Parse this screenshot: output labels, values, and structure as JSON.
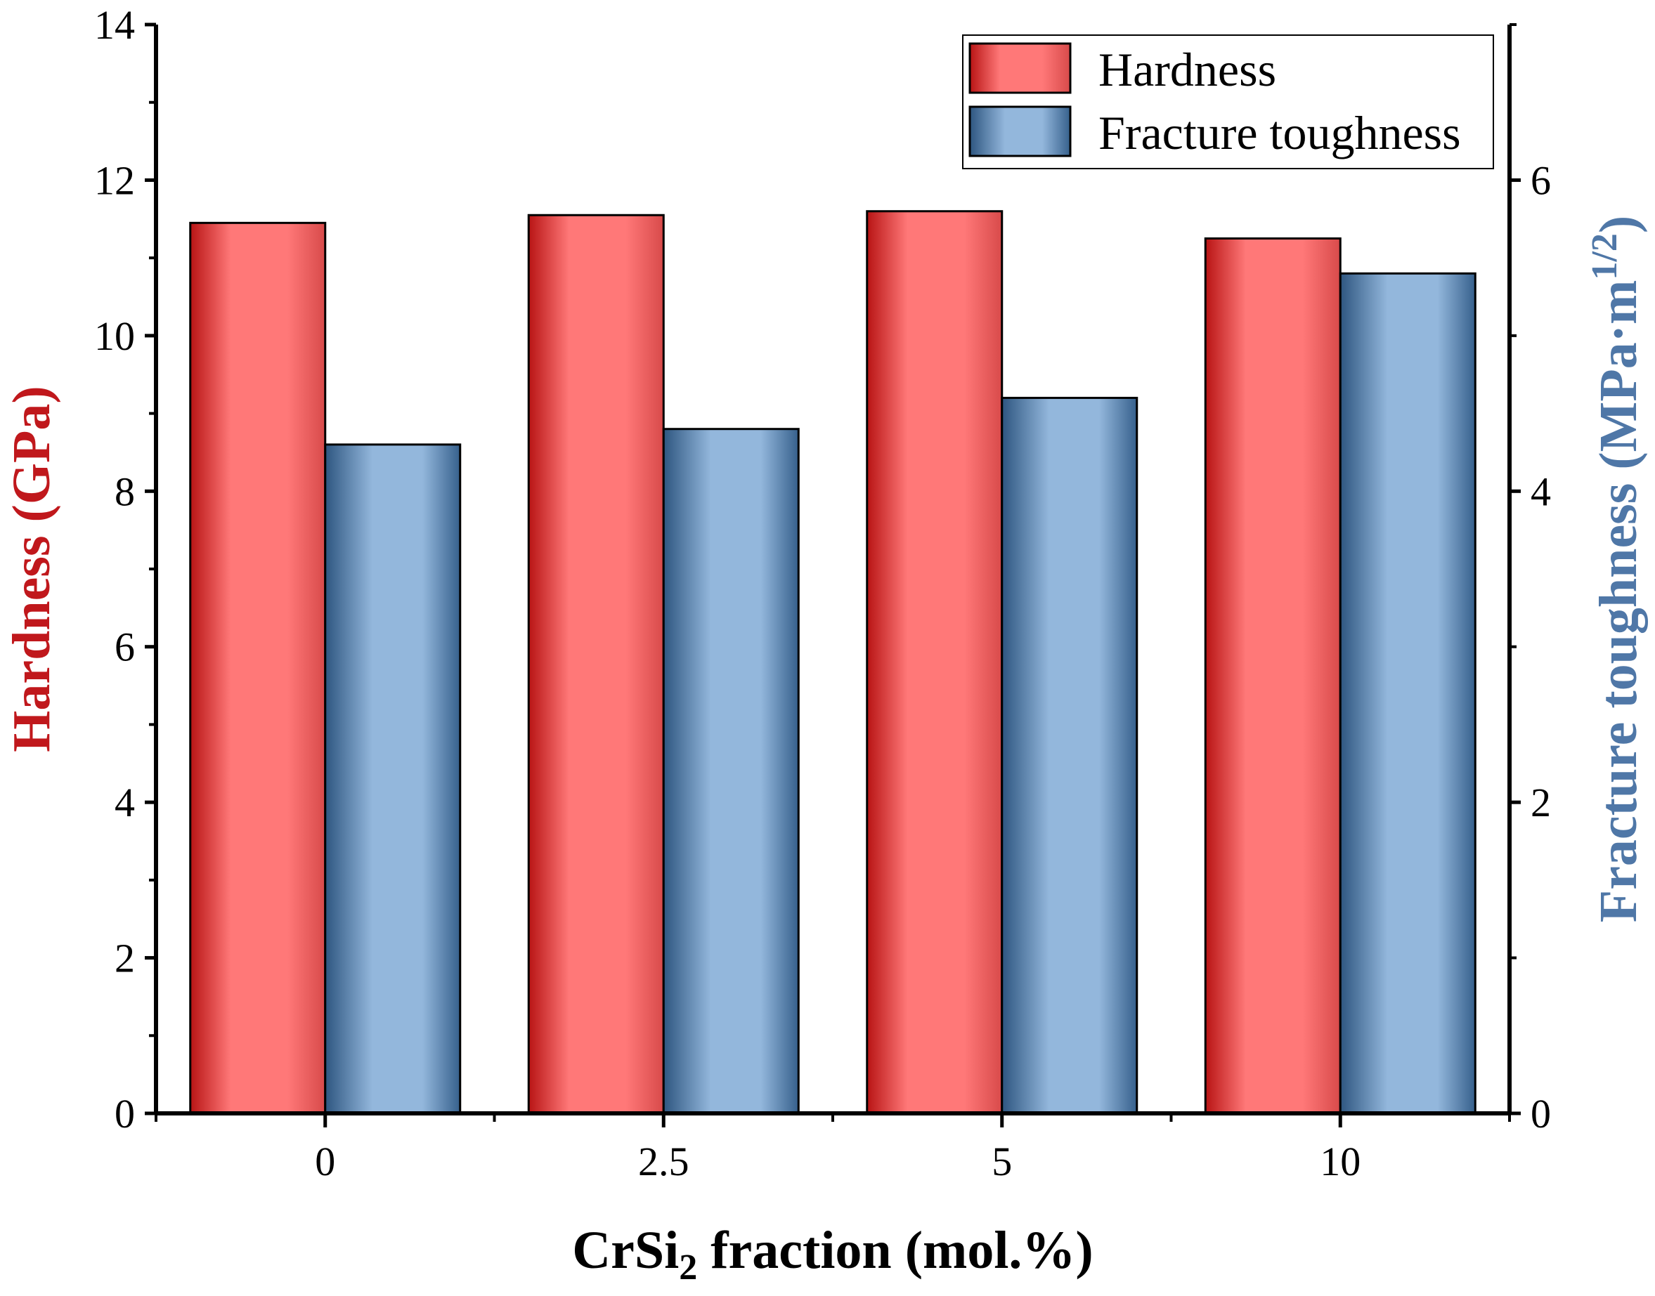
{
  "chart_data": {
    "type": "bar",
    "categories": [
      "0",
      "2.5",
      "5",
      "10"
    ],
    "series": [
      {
        "name": "Hardness",
        "axis": "left",
        "values": [
          11.45,
          11.55,
          11.6,
          11.25
        ],
        "color": "#ff7a7a",
        "edge_color": "#c41818"
      },
      {
        "name": "Fracture toughness",
        "axis": "right",
        "values": [
          4.3,
          4.4,
          4.6,
          5.4
        ],
        "color": "#93b7dc",
        "edge_color": "#3f6a96"
      }
    ],
    "xlabel": {
      "main": "CrSi",
      "sub": "2",
      "rest": " fraction (mol.%)"
    },
    "ylabel_left": "Hardness (GPa)",
    "ylabel_right": {
      "main": "Fracture toughness (MPa·m",
      "sup": "1/2",
      "rest": ")"
    },
    "ylim_left": [
      0,
      14
    ],
    "ylim_right": [
      0,
      7
    ],
    "yticks_left": [
      0,
      2,
      4,
      6,
      8,
      10,
      12,
      14
    ],
    "yticks_right": [
      0,
      2,
      4,
      6
    ],
    "ylabel_left_color": "#c0181c",
    "ylabel_right_color": "#4f77a7",
    "legend_position": "top-right",
    "grid": false
  }
}
